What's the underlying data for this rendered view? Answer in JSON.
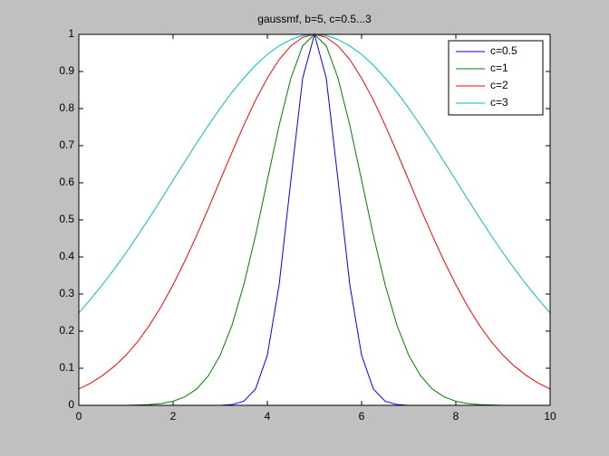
{
  "chart_data": {
    "type": "line",
    "title": "gaussmf, b=5, c=0.5...3",
    "x": [
      0,
      0.25,
      0.5,
      0.75,
      1,
      1.25,
      1.5,
      1.75,
      2,
      2.25,
      2.5,
      2.75,
      3,
      3.25,
      3.5,
      3.75,
      4,
      4.25,
      4.5,
      4.75,
      5,
      5.25,
      5.5,
      5.75,
      6,
      6.25,
      6.5,
      6.75,
      7,
      7.25,
      7.5,
      7.75,
      8,
      8.25,
      8.5,
      8.75,
      9,
      9.25,
      9.5,
      9.75,
      10
    ],
    "series": [
      {
        "name": "c=0.5",
        "color": "#0000ff",
        "values": [
          0,
          0,
          0,
          0,
          0,
          0,
          0,
          0,
          0,
          0,
          0,
          0,
          0,
          0.002,
          0.011,
          0.044,
          0.135,
          0.325,
          0.607,
          0.882,
          1,
          0.882,
          0.607,
          0.325,
          0.135,
          0.044,
          0.011,
          0.002,
          0,
          0,
          0,
          0,
          0,
          0,
          0,
          0,
          0,
          0,
          0,
          0,
          0
        ]
      },
      {
        "name": "c=1",
        "color": "#008000",
        "values": [
          0,
          0,
          0,
          0,
          0,
          0.001,
          0.002,
          0.005,
          0.011,
          0.023,
          0.044,
          0.08,
          0.135,
          0.216,
          0.325,
          0.458,
          0.607,
          0.755,
          0.882,
          0.969,
          1,
          0.969,
          0.882,
          0.755,
          0.607,
          0.458,
          0.325,
          0.216,
          0.135,
          0.08,
          0.044,
          0.023,
          0.011,
          0.005,
          0.002,
          0.001,
          0,
          0,
          0,
          0,
          0
        ]
      },
      {
        "name": "c=2",
        "color": "#ff0000",
        "values": [
          0.044,
          0.06,
          0.08,
          0.105,
          0.135,
          0.172,
          0.216,
          0.267,
          0.325,
          0.389,
          0.458,
          0.531,
          0.607,
          0.682,
          0.755,
          0.823,
          0.882,
          0.932,
          0.969,
          0.992,
          1,
          0.992,
          0.969,
          0.932,
          0.882,
          0.823,
          0.755,
          0.682,
          0.607,
          0.531,
          0.458,
          0.389,
          0.325,
          0.267,
          0.216,
          0.172,
          0.135,
          0.105,
          0.08,
          0.06,
          0.044
        ]
      },
      {
        "name": "c=3",
        "color": "#00bfbf",
        "values": [
          0.249,
          0.286,
          0.325,
          0.367,
          0.411,
          0.458,
          0.506,
          0.556,
          0.607,
          0.657,
          0.707,
          0.755,
          0.801,
          0.844,
          0.882,
          0.917,
          0.946,
          0.969,
          0.986,
          0.997,
          1,
          0.997,
          0.986,
          0.969,
          0.946,
          0.917,
          0.882,
          0.844,
          0.801,
          0.755,
          0.707,
          0.657,
          0.607,
          0.556,
          0.506,
          0.458,
          0.411,
          0.367,
          0.325,
          0.286,
          0.249
        ]
      }
    ],
    "xlim": [
      0,
      10
    ],
    "xticks": [
      0,
      2,
      4,
      6,
      8,
      10
    ],
    "ylim": [
      0,
      1
    ],
    "yticks": [
      0,
      0.1,
      0.2,
      0.3,
      0.4,
      0.5,
      0.6,
      0.7,
      0.8,
      0.9,
      1
    ],
    "legend": "top-right"
  }
}
